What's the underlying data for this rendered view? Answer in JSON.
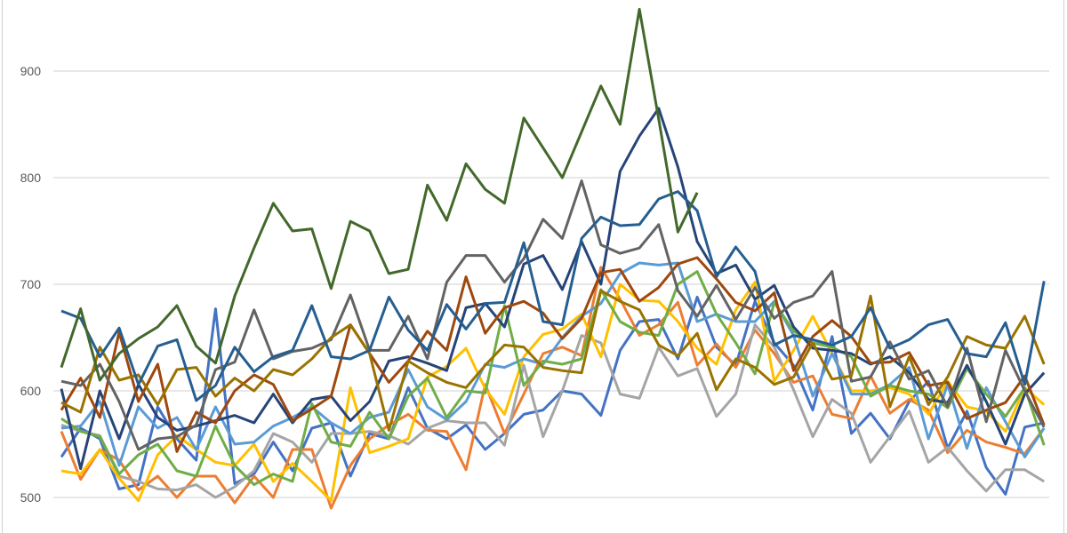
{
  "chart_data": {
    "type": "line",
    "title": "",
    "xlabel": "",
    "ylabel": "",
    "yticks": [
      500,
      600,
      700,
      800,
      900
    ],
    "ylim_visible": [
      470,
      1000
    ],
    "grid": "horizontal",
    "legend": "none",
    "series": [
      {
        "color": "#4472C4",
        "values": [
          538,
          565,
          555,
          508,
          512,
          585,
          555,
          535,
          677,
          513,
          522,
          552,
          525,
          565,
          570,
          520,
          560,
          555,
          603,
          565,
          555,
          568,
          545,
          560,
          578,
          582,
          600,
          597,
          577,
          638,
          665,
          667,
          630,
          688,
          641,
          624,
          684,
          645,
          624,
          582,
          651,
          560,
          579,
          555,
          590,
          609,
          546,
          581,
          528,
          503,
          566,
          570
        ]
      },
      {
        "color": "#ED7D31",
        "values": [
          562,
          517,
          545,
          535,
          507,
          520,
          500,
          520,
          520,
          495,
          520,
          500,
          545,
          545,
          490,
          530,
          555,
          568,
          578,
          563,
          562,
          526,
          606,
          560,
          597,
          635,
          641,
          633,
          716,
          686,
          652,
          662,
          683,
          624,
          644,
          622,
          657,
          635,
          608,
          614,
          578,
          574,
          614,
          579,
          592,
          582,
          542,
          563,
          552,
          547,
          541,
          565
        ]
      },
      {
        "color": "#A5A5A5",
        "values": [
          568,
          562,
          558,
          520,
          515,
          508,
          507,
          512,
          500,
          510,
          525,
          560,
          552,
          533,
          560,
          560,
          562,
          558,
          550,
          565,
          572,
          570,
          570,
          549,
          624,
          557,
          600,
          652,
          645,
          597,
          593,
          641,
          614,
          621,
          576,
          597,
          662,
          641,
          601,
          557,
          592,
          579,
          533,
          557,
          581,
          533,
          547,
          525,
          506,
          526,
          526,
          515
        ]
      },
      {
        "color": "#FFC000",
        "values": [
          525,
          522,
          545,
          518,
          497,
          540,
          558,
          545,
          533,
          530,
          550,
          515,
          532,
          515,
          497,
          603,
          542,
          548,
          555,
          613,
          623,
          640,
          602,
          578,
          632,
          653,
          658,
          672,
          632,
          700,
          685,
          684,
          665,
          640,
          625,
          676,
          702,
          609,
          638,
          670,
          635,
          600,
          600,
          603,
          597,
          578,
          609,
          585,
          581,
          562,
          603,
          587
        ]
      },
      {
        "color": "#5B9BD5",
        "values": [
          565,
          567,
          590,
          530,
          585,
          565,
          575,
          545,
          585,
          550,
          552,
          567,
          575,
          585,
          570,
          560,
          575,
          580,
          620,
          585,
          573,
          590,
          625,
          622,
          630,
          625,
          650,
          670,
          682,
          710,
          720,
          718,
          720,
          665,
          672,
          665,
          665,
          684,
          652,
          595,
          635,
          597,
          597,
          606,
          622,
          555,
          606,
          546,
          603,
          571,
          538,
          565
        ]
      },
      {
        "color": "#70AD47",
        "values": [
          574,
          562,
          557,
          522,
          540,
          550,
          525,
          520,
          567,
          530,
          512,
          522,
          515,
          588,
          552,
          548,
          580,
          555,
          595,
          612,
          575,
          600,
          598,
          680,
          605,
          628,
          625,
          630,
          695,
          665,
          655,
          652,
          700,
          712,
          672,
          645,
          616,
          683,
          656,
          645,
          641,
          632,
          595,
          605,
          600,
          597,
          584,
          621,
          597,
          576,
          603,
          549
        ]
      },
      {
        "color": "#264478",
        "values": [
          602,
          527,
          600,
          555,
          606,
          575,
          563,
          567,
          572,
          577,
          570,
          597,
          570,
          592,
          595,
          572,
          590,
          628,
          632,
          626,
          619,
          678,
          682,
          660,
          719,
          727,
          695,
          740,
          700,
          806,
          839,
          865,
          810,
          740,
          710,
          718,
          686,
          699,
          660,
          640,
          638,
          635,
          625,
          632,
          617,
          592,
          589,
          624,
          590,
          550,
          597,
          617
        ]
      },
      {
        "color": "#9E480E",
        "values": [
          582,
          612,
          575,
          655,
          590,
          625,
          543,
          580,
          570,
          600,
          615,
          606,
          572,
          583,
          595,
          662,
          635,
          608,
          628,
          656,
          638,
          707,
          654,
          678,
          684,
          673,
          649,
          668,
          711,
          714,
          684,
          697,
          719,
          725,
          705,
          683,
          675,
          692,
          619,
          651,
          666,
          651,
          626,
          627,
          636,
          605,
          608,
          574,
          582,
          589,
          614,
          568
        ]
      },
      {
        "color": "#636363",
        "values": [
          609,
          605,
          625,
          590,
          545,
          555,
          557,
          568,
          620,
          627,
          676,
          630,
          637,
          640,
          648,
          690,
          638,
          638,
          670,
          630,
          702,
          727,
          727,
          702,
          724,
          761,
          743,
          797,
          737,
          729,
          734,
          756,
          694,
          670,
          699,
          667,
          697,
          668,
          683,
          689,
          712,
          609,
          613,
          646,
          611,
          619,
          585,
          640,
          571,
          638,
          600,
          566
        ]
      },
      {
        "color": "#997300",
        "values": [
          589,
          580,
          641,
          610,
          615,
          587,
          620,
          622,
          595,
          612,
          600,
          620,
          615,
          630,
          650,
          662,
          635,
          563,
          628,
          617,
          608,
          603,
          624,
          643,
          641,
          622,
          619,
          617,
          694,
          684,
          676,
          643,
          633,
          654,
          601,
          630,
          622,
          606,
          613,
          645,
          611,
          614,
          689,
          585,
          632,
          587,
          613,
          651,
          643,
          640,
          670,
          625
        ]
      },
      {
        "color": "#255E91",
        "values": [
          675,
          668,
          632,
          659,
          606,
          642,
          648,
          591,
          605,
          641,
          618,
          632,
          638,
          680,
          632,
          630,
          638,
          688,
          657,
          638,
          681,
          658,
          682,
          683,
          739,
          665,
          662,
          743,
          763,
          755,
          756,
          780,
          787,
          769,
          707,
          735,
          712,
          643,
          652,
          648,
          643,
          651,
          678,
          640,
          648,
          662,
          667,
          635,
          632,
          664,
          606,
          703
        ]
      },
      {
        "color": "#43682B",
        "values": [
          622,
          677,
          610,
          635,
          649,
          660,
          680,
          642,
          626,
          689,
          734,
          776,
          750,
          752,
          696,
          759,
          750,
          710,
          714,
          793,
          760,
          813,
          789,
          776,
          856,
          828,
          800,
          843,
          886,
          850,
          958,
          855,
          749,
          786
        ]
      }
    ]
  }
}
